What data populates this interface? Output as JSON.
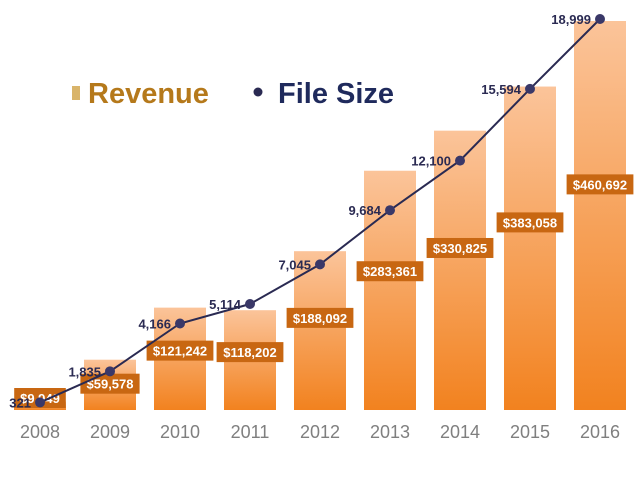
{
  "chart_data": {
    "type": "bar",
    "categories": [
      "2008",
      "2009",
      "2010",
      "2011",
      "2012",
      "2013",
      "2014",
      "2015",
      "2016"
    ],
    "series": [
      {
        "name": "Revenue",
        "kind": "bar",
        "values": [
          9949,
          59578,
          121242,
          118202,
          188092,
          283361,
          330825,
          383058,
          460692
        ],
        "labels": [
          "$9,949",
          "$59,578",
          "$121,242",
          "$118,202",
          "$188,092",
          "$283,361",
          "$330,825",
          "$383,058",
          "$460,692"
        ]
      },
      {
        "name": "File Size",
        "kind": "line",
        "values": [
          321,
          1835,
          4166,
          5114,
          7045,
          9684,
          12100,
          15594,
          18999
        ],
        "labels": [
          "321",
          "1,835",
          "4,166",
          "5,114",
          "7,045",
          "9,684",
          "12,100",
          "15,594",
          "18,999"
        ]
      }
    ],
    "legend": {
      "position": "top-left",
      "items": [
        "Revenue",
        "File Size"
      ]
    },
    "grid": false
  },
  "colors": {
    "bar_top": "#fbc49a",
    "bar_bottom": "#f2821f",
    "label_box": "#c86712",
    "line": "#2a2a52",
    "point": "#3a3868",
    "revenue_legend_text": "#b5791b",
    "filesize_legend_text": "#1f2a5c",
    "tick_text": "#7f7f7f"
  }
}
